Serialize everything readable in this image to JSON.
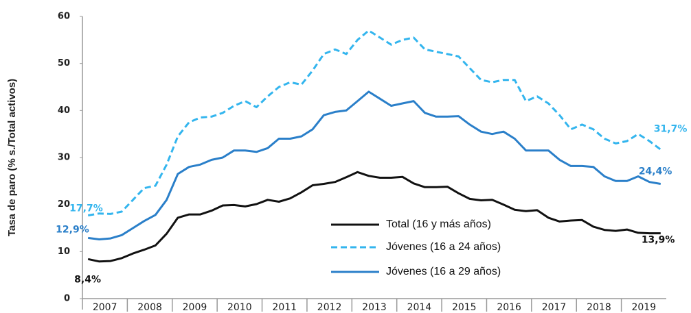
{
  "chart_data": {
    "type": "line",
    "y_label": "Tasa de paro (% s./Total activos)",
    "categories": [
      null,
      "2007",
      null,
      null,
      null,
      "2008",
      null,
      null,
      null,
      "2009",
      null,
      null,
      null,
      "2010",
      null,
      null,
      null,
      "2011",
      null,
      null,
      null,
      "2012",
      null,
      null,
      null,
      "2013",
      null,
      null,
      null,
      "2014",
      null,
      null,
      null,
      "2015",
      null,
      null,
      null,
      "2016",
      null,
      null,
      null,
      "2017",
      null,
      null,
      null,
      "2018",
      null,
      null,
      null,
      "2019",
      null,
      null
    ],
    "ylim": [
      0,
      60
    ],
    "yticks": [
      0,
      10,
      20,
      30,
      40,
      50,
      60
    ],
    "series": [
      {
        "name": "Total (16 y más años)",
        "color": "#111111",
        "dash": false,
        "values": [
          8.4,
          7.9,
          8.0,
          8.6,
          9.6,
          10.4,
          11.3,
          13.8,
          17.2,
          17.9,
          17.9,
          18.7,
          19.8,
          19.9,
          19.6,
          20.1,
          21.0,
          20.6,
          21.3,
          22.6,
          24.1,
          24.4,
          24.8,
          25.8,
          26.9,
          26.1,
          25.7,
          25.7,
          25.9,
          24.5,
          23.7,
          23.7,
          23.8,
          22.4,
          21.2,
          20.9,
          21.0,
          20.0,
          18.9,
          18.6,
          18.8,
          17.2,
          16.4,
          16.6,
          16.7,
          15.3,
          14.6,
          14.4,
          14.7,
          14.0,
          13.9,
          13.9
        ],
        "value_labels": [
          "8,4%",
          null,
          null,
          null,
          null,
          null,
          null,
          null,
          null,
          null,
          null,
          null,
          null,
          null,
          null,
          null,
          null,
          null,
          null,
          null,
          null,
          null,
          null,
          null,
          null,
          null,
          null,
          null,
          null,
          null,
          null,
          null,
          null,
          null,
          null,
          null,
          null,
          null,
          null,
          null,
          null,
          null,
          null,
          null,
          null,
          null,
          null,
          null,
          null,
          null,
          null,
          "13,9%"
        ]
      },
      {
        "name": "Jóvenes (16 a 24 años)",
        "color": "#33b5ee",
        "dash": true,
        "values": [
          17.7,
          18.1,
          18.0,
          18.5,
          21.0,
          23.5,
          24.0,
          28.5,
          34.5,
          37.5,
          38.5,
          38.7,
          39.5,
          41.0,
          42.0,
          40.7,
          43.0,
          45.0,
          46.0,
          45.5,
          48.5,
          52.0,
          53.0,
          52.0,
          55.0,
          57.0,
          55.5,
          54.0,
          55.0,
          55.5,
          53.0,
          52.5,
          52.0,
          51.5,
          49.0,
          46.5,
          46.0,
          46.5,
          46.5,
          42.0,
          43.0,
          41.5,
          39.0,
          36.0,
          37.0,
          36.0,
          34.0,
          33.0,
          33.5,
          35.0,
          33.5,
          31.7
        ],
        "value_labels": [
          "17,7%",
          null,
          null,
          null,
          null,
          null,
          null,
          null,
          null,
          null,
          null,
          null,
          null,
          null,
          null,
          null,
          null,
          null,
          null,
          null,
          null,
          null,
          null,
          null,
          null,
          null,
          null,
          null,
          null,
          null,
          null,
          null,
          null,
          null,
          null,
          null,
          null,
          null,
          null,
          null,
          null,
          null,
          null,
          null,
          null,
          null,
          null,
          null,
          null,
          null,
          null,
          "31,7%"
        ]
      },
      {
        "name": "Jóvenes (16 a 29 años)",
        "color": "#2a7fc9",
        "dash": false,
        "values": [
          12.9,
          12.6,
          12.8,
          13.5,
          15.0,
          16.5,
          17.8,
          21.0,
          26.5,
          28.0,
          28.5,
          29.5,
          30.0,
          31.5,
          31.5,
          31.2,
          32.0,
          34.0,
          34.0,
          34.5,
          36.0,
          39.0,
          39.7,
          40.0,
          42.0,
          44.0,
          42.5,
          41.0,
          41.5,
          42.0,
          39.5,
          38.7,
          38.7,
          38.8,
          37.0,
          35.5,
          35.0,
          35.5,
          34.0,
          31.5,
          31.5,
          31.5,
          29.5,
          28.2,
          28.2,
          28.0,
          26.0,
          25.0,
          25.0,
          26.0,
          24.8,
          24.4
        ],
        "value_labels": [
          "12,9%",
          null,
          null,
          null,
          null,
          null,
          null,
          null,
          null,
          null,
          null,
          null,
          null,
          null,
          null,
          null,
          null,
          null,
          null,
          null,
          null,
          null,
          null,
          null,
          null,
          null,
          null,
          null,
          null,
          null,
          null,
          null,
          null,
          null,
          null,
          null,
          null,
          null,
          null,
          null,
          null,
          null,
          null,
          null,
          null,
          null,
          null,
          null,
          null,
          null,
          null,
          "24,4%"
        ]
      }
    ]
  }
}
